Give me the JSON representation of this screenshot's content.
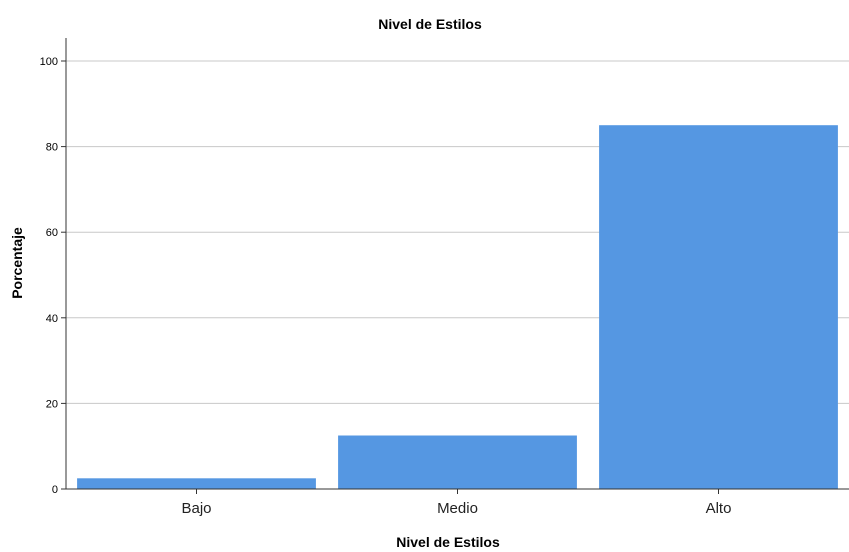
{
  "chart_data": {
    "type": "bar",
    "title": "Nivel de Estilos",
    "xlabel": "Nivel de Estilos",
    "ylabel": "Porcentaje",
    "categories": [
      "Bajo",
      "Medio",
      "Alto"
    ],
    "values": [
      2.5,
      12.5,
      85.0
    ],
    "ylim": [
      0,
      105
    ],
    "yticks": [
      0,
      20,
      40,
      60,
      80,
      100
    ],
    "grid": true,
    "bar_color": "#5597e2"
  }
}
